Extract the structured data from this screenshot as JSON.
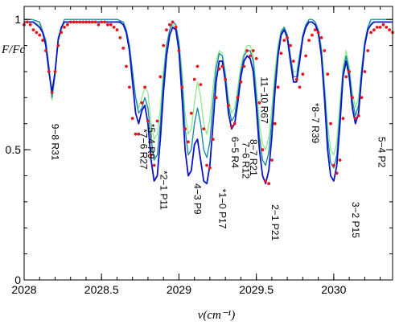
{
  "chart_data": {
    "type": "line",
    "xlabel": "ν(cm⁻¹)",
    "ylabel": "F/Fc",
    "xlim": [
      2028.0,
      2030.38
    ],
    "ylim": [
      0,
      1.05
    ],
    "x_ticks": [
      {
        "v": 2028.0,
        "label": "2028"
      },
      {
        "v": 2028.5,
        "label": "2028.5"
      },
      {
        "v": 2029.0,
        "label": "2029"
      },
      {
        "v": 2029.5,
        "label": "2029.5"
      },
      {
        "v": 2030.0,
        "label": "2030"
      }
    ],
    "y_ticks": [
      {
        "v": 0,
        "label": "0"
      },
      {
        "v": 0.5,
        "label": "0.5"
      },
      {
        "v": 1.0,
        "label": "1"
      }
    ],
    "colors": {
      "observed": "#e8141b",
      "model_blue": "#0a14c8",
      "model_green": "#8ee88e",
      "model_teal": "#1e8c9e",
      "axes": "#000000"
    },
    "series": [
      {
        "role": "observed-points",
        "style": "points",
        "x": [
          2028.0,
          2028.02,
          2028.04,
          2028.06,
          2028.08,
          2028.1,
          2028.12,
          2028.14,
          2028.16,
          2028.18,
          2028.2,
          2028.22,
          2028.24,
          2028.26,
          2028.28,
          2028.3,
          2028.32,
          2028.34,
          2028.36,
          2028.38,
          2028.4,
          2028.42,
          2028.44,
          2028.46,
          2028.48,
          2028.5,
          2028.52,
          2028.54,
          2028.56,
          2028.58,
          2028.6,
          2028.62,
          2028.64,
          2028.66,
          2028.68,
          2028.7,
          2028.72,
          2028.74,
          2028.76,
          2028.78,
          2028.8,
          2028.82,
          2028.84,
          2028.86,
          2028.88,
          2028.9,
          2028.92,
          2028.94,
          2028.96,
          2028.98,
          2029.0,
          2029.02,
          2029.04,
          2029.06,
          2029.08,
          2029.1,
          2029.12,
          2029.14,
          2029.16,
          2029.18,
          2029.2,
          2029.22,
          2029.24,
          2029.26,
          2029.28,
          2029.3,
          2029.32,
          2029.34,
          2029.36,
          2029.38,
          2029.4,
          2029.42,
          2029.44,
          2029.46,
          2029.48,
          2029.5,
          2029.52,
          2029.54,
          2029.56,
          2029.58,
          2029.6,
          2029.62,
          2029.64,
          2029.66,
          2029.68,
          2029.7,
          2029.72,
          2029.74,
          2029.76,
          2029.78,
          2029.8,
          2029.82,
          2029.84,
          2029.86,
          2029.88,
          2029.9,
          2029.92,
          2029.94,
          2029.96,
          2029.98,
          2030.0,
          2030.02,
          2030.04,
          2030.06,
          2030.08,
          2030.1,
          2030.12,
          2030.14,
          2030.16,
          2030.18,
          2030.2,
          2030.22,
          2030.24,
          2030.26,
          2030.28,
          2030.3,
          2030.32,
          2030.34,
          2030.36,
          2030.38
        ],
        "y": [
          0.98,
          0.99,
          0.98,
          0.96,
          0.95,
          0.94,
          0.92,
          0.88,
          0.8,
          0.72,
          0.8,
          0.9,
          0.95,
          0.97,
          0.98,
          0.99,
          0.99,
          0.99,
          0.99,
          0.99,
          0.99,
          0.99,
          0.99,
          0.99,
          0.98,
          0.99,
          0.99,
          0.98,
          0.98,
          0.97,
          0.96,
          0.93,
          0.89,
          0.82,
          0.74,
          0.62,
          0.56,
          0.56,
          0.68,
          0.74,
          0.61,
          0.48,
          0.44,
          0.61,
          0.78,
          0.9,
          0.96,
          0.98,
          0.99,
          0.97,
          0.88,
          0.74,
          0.58,
          0.53,
          0.64,
          0.77,
          0.82,
          0.75,
          0.58,
          0.44,
          0.43,
          0.54,
          0.7,
          0.81,
          0.82,
          0.77,
          0.67,
          0.59,
          0.6,
          0.7,
          0.76,
          0.82,
          0.88,
          0.86,
          0.88,
          0.85,
          0.68,
          0.5,
          0.38,
          0.37,
          0.46,
          0.6,
          0.74,
          0.87,
          0.92,
          0.93,
          0.9,
          0.84,
          0.77,
          0.74,
          0.79,
          0.86,
          0.92,
          0.94,
          0.96,
          0.95,
          0.93,
          0.88,
          0.79,
          0.6,
          0.44,
          0.41,
          0.46,
          0.62,
          0.78,
          0.8,
          0.7,
          0.62,
          0.63,
          0.7,
          0.8,
          0.88,
          0.95,
          0.96,
          0.97,
          0.97,
          0.98,
          0.97,
          0.96,
          0.95
        ]
      },
      {
        "role": "model-blue",
        "style": "line",
        "x": [
          2028.0,
          2028.02,
          2028.04,
          2028.06,
          2028.08,
          2028.1,
          2028.12,
          2028.14,
          2028.16,
          2028.18,
          2028.2,
          2028.22,
          2028.24,
          2028.26,
          2028.28,
          2028.3,
          2028.35,
          2028.4,
          2028.45,
          2028.5,
          2028.55,
          2028.6,
          2028.62,
          2028.64,
          2028.66,
          2028.68,
          2028.7,
          2028.72,
          2028.74,
          2028.76,
          2028.78,
          2028.8,
          2028.82,
          2028.84,
          2028.86,
          2028.88,
          2028.9,
          2028.92,
          2028.94,
          2028.96,
          2028.98,
          2029.0,
          2029.02,
          2029.04,
          2029.06,
          2029.08,
          2029.1,
          2029.12,
          2029.14,
          2029.16,
          2029.18,
          2029.2,
          2029.22,
          2029.24,
          2029.26,
          2029.28,
          2029.3,
          2029.32,
          2029.34,
          2029.36,
          2029.38,
          2029.4,
          2029.42,
          2029.44,
          2029.46,
          2029.48,
          2029.5,
          2029.52,
          2029.54,
          2029.56,
          2029.58,
          2029.6,
          2029.62,
          2029.64,
          2029.66,
          2029.68,
          2029.7,
          2029.72,
          2029.74,
          2029.76,
          2029.78,
          2029.8,
          2029.82,
          2029.84,
          2029.86,
          2029.88,
          2029.9,
          2029.92,
          2029.94,
          2029.96,
          2029.98,
          2030.0,
          2030.02,
          2030.04,
          2030.06,
          2030.08,
          2030.1,
          2030.12,
          2030.14,
          2030.16,
          2030.18,
          2030.2,
          2030.22,
          2030.24,
          2030.26,
          2030.28,
          2030.3,
          2030.32,
          2030.34,
          2030.36,
          2030.38
        ],
        "y": [
          0.99,
          0.99,
          0.99,
          0.99,
          0.98,
          0.97,
          0.95,
          0.9,
          0.8,
          0.72,
          0.8,
          0.92,
          0.97,
          0.99,
          0.99,
          0.99,
          0.99,
          0.99,
          0.99,
          0.99,
          0.99,
          0.99,
          0.99,
          0.98,
          0.95,
          0.88,
          0.76,
          0.64,
          0.6,
          0.65,
          0.67,
          0.6,
          0.46,
          0.38,
          0.4,
          0.54,
          0.72,
          0.86,
          0.94,
          0.97,
          0.96,
          0.88,
          0.7,
          0.5,
          0.4,
          0.42,
          0.52,
          0.54,
          0.46,
          0.38,
          0.37,
          0.44,
          0.6,
          0.76,
          0.84,
          0.84,
          0.76,
          0.64,
          0.58,
          0.6,
          0.68,
          0.78,
          0.84,
          0.86,
          0.85,
          0.8,
          0.66,
          0.5,
          0.4,
          0.37,
          0.42,
          0.55,
          0.72,
          0.86,
          0.94,
          0.96,
          0.93,
          0.84,
          0.76,
          0.76,
          0.84,
          0.93,
          0.97,
          0.99,
          0.99,
          0.98,
          0.95,
          0.86,
          0.7,
          0.5,
          0.4,
          0.38,
          0.44,
          0.6,
          0.78,
          0.84,
          0.78,
          0.66,
          0.6,
          0.64,
          0.78,
          0.9,
          0.96,
          0.98,
          0.99,
          0.99,
          0.99,
          0.99,
          0.99,
          0.99,
          0.99
        ]
      },
      {
        "role": "model-green",
        "style": "line",
        "x": [
          2028.0,
          2028.05,
          2028.1,
          2028.14,
          2028.16,
          2028.18,
          2028.2,
          2028.22,
          2028.26,
          2028.3,
          2028.4,
          2028.5,
          2028.6,
          2028.64,
          2028.66,
          2028.68,
          2028.7,
          2028.72,
          2028.74,
          2028.76,
          2028.78,
          2028.8,
          2028.82,
          2028.84,
          2028.86,
          2028.88,
          2028.9,
          2028.92,
          2028.94,
          2028.96,
          2028.98,
          2029.0,
          2029.02,
          2029.04,
          2029.06,
          2029.08,
          2029.1,
          2029.12,
          2029.14,
          2029.16,
          2029.18,
          2029.2,
          2029.22,
          2029.24,
          2029.26,
          2029.28,
          2029.3,
          2029.32,
          2029.34,
          2029.36,
          2029.38,
          2029.4,
          2029.42,
          2029.44,
          2029.46,
          2029.48,
          2029.5,
          2029.52,
          2029.54,
          2029.56,
          2029.58,
          2029.6,
          2029.62,
          2029.64,
          2029.66,
          2029.68,
          2029.7,
          2029.72,
          2029.74,
          2029.76,
          2029.78,
          2029.8,
          2029.82,
          2029.84,
          2029.86,
          2029.88,
          2029.9,
          2029.92,
          2029.94,
          2029.96,
          2029.98,
          2030.0,
          2030.02,
          2030.04,
          2030.06,
          2030.08,
          2030.1,
          2030.12,
          2030.14,
          2030.16,
          2030.18,
          2030.2,
          2030.22,
          2030.24,
          2030.26,
          2030.28,
          2030.3,
          2030.32,
          2030.34,
          2030.36,
          2030.38
        ],
        "y": [
          0.99,
          0.99,
          0.98,
          0.92,
          0.82,
          0.69,
          0.78,
          0.92,
          0.99,
          0.99,
          0.99,
          0.99,
          0.99,
          0.98,
          0.95,
          0.9,
          0.8,
          0.7,
          0.66,
          0.7,
          0.74,
          0.72,
          0.6,
          0.54,
          0.56,
          0.66,
          0.8,
          0.9,
          0.96,
          0.98,
          0.97,
          0.92,
          0.8,
          0.64,
          0.56,
          0.58,
          0.68,
          0.76,
          0.7,
          0.6,
          0.56,
          0.62,
          0.74,
          0.84,
          0.88,
          0.87,
          0.8,
          0.7,
          0.64,
          0.66,
          0.74,
          0.82,
          0.87,
          0.9,
          0.9,
          0.86,
          0.74,
          0.6,
          0.52,
          0.5,
          0.55,
          0.66,
          0.8,
          0.9,
          0.96,
          0.97,
          0.94,
          0.86,
          0.8,
          0.8,
          0.87,
          0.94,
          0.98,
          0.99,
          0.99,
          0.98,
          0.96,
          0.9,
          0.76,
          0.6,
          0.5,
          0.48,
          0.53,
          0.68,
          0.82,
          0.88,
          0.82,
          0.72,
          0.66,
          0.7,
          0.82,
          0.92,
          0.97,
          0.99,
          0.99,
          0.99,
          0.99,
          0.99,
          0.99,
          0.99,
          0.99
        ]
      },
      {
        "role": "model-teal",
        "style": "line",
        "x": [
          2028.0,
          2028.05,
          2028.1,
          2028.14,
          2028.16,
          2028.18,
          2028.2,
          2028.22,
          2028.26,
          2028.3,
          2028.4,
          2028.5,
          2028.6,
          2028.64,
          2028.66,
          2028.68,
          2028.7,
          2028.72,
          2028.74,
          2028.76,
          2028.78,
          2028.8,
          2028.82,
          2028.84,
          2028.86,
          2028.88,
          2028.9,
          2028.92,
          2028.94,
          2028.96,
          2028.98,
          2029.0,
          2029.02,
          2029.04,
          2029.06,
          2029.08,
          2029.1,
          2029.12,
          2029.14,
          2029.16,
          2029.18,
          2029.2,
          2029.22,
          2029.24,
          2029.26,
          2029.28,
          2029.3,
          2029.32,
          2029.34,
          2029.36,
          2029.38,
          2029.4,
          2029.42,
          2029.44,
          2029.46,
          2029.48,
          2029.5,
          2029.52,
          2029.54,
          2029.56,
          2029.58,
          2029.6,
          2029.62,
          2029.64,
          2029.66,
          2029.68,
          2029.7,
          2029.72,
          2029.74,
          2029.76,
          2029.78,
          2029.8,
          2029.82,
          2029.84,
          2029.86,
          2029.88,
          2029.9,
          2029.92,
          2029.94,
          2029.96,
          2029.98,
          2030.0,
          2030.02,
          2030.04,
          2030.06,
          2030.08,
          2030.1,
          2030.12,
          2030.14,
          2030.16,
          2030.18,
          2030.2,
          2030.22,
          2030.24,
          2030.26,
          2030.28,
          2030.3,
          2030.32,
          2030.34,
          2030.36,
          2030.38
        ],
        "y": [
          1.0,
          1.0,
          0.99,
          0.92,
          0.82,
          0.7,
          0.79,
          0.93,
          1.0,
          1.0,
          1.0,
          1.0,
          1.0,
          0.99,
          0.96,
          0.9,
          0.8,
          0.7,
          0.64,
          0.66,
          0.7,
          0.66,
          0.54,
          0.46,
          0.48,
          0.6,
          0.77,
          0.9,
          0.96,
          0.99,
          0.98,
          0.91,
          0.76,
          0.58,
          0.48,
          0.5,
          0.6,
          0.66,
          0.6,
          0.5,
          0.47,
          0.53,
          0.68,
          0.81,
          0.87,
          0.86,
          0.78,
          0.67,
          0.61,
          0.63,
          0.71,
          0.8,
          0.86,
          0.88,
          0.88,
          0.84,
          0.7,
          0.55,
          0.46,
          0.44,
          0.49,
          0.61,
          0.76,
          0.88,
          0.95,
          0.97,
          0.94,
          0.86,
          0.78,
          0.78,
          0.86,
          0.94,
          0.98,
          1.0,
          1.0,
          0.99,
          0.96,
          0.88,
          0.73,
          0.55,
          0.45,
          0.43,
          0.48,
          0.64,
          0.8,
          0.86,
          0.8,
          0.69,
          0.63,
          0.67,
          0.8,
          0.91,
          0.97,
          1.0,
          1.0,
          1.0,
          1.0,
          1.0,
          1.0,
          1.0,
          1.0
        ]
      }
    ],
    "annotations": [
      {
        "text": "9−8 R31",
        "x": 2028.18,
        "y": 0.6
      },
      {
        "text": "*5−4 R9",
        "x": 2028.8,
        "y": 0.6
      },
      {
        "text": "*7−6 R27",
        "x": 2028.75,
        "y": 0.58
      },
      {
        "text": "*2−1 P11",
        "x": 2028.88,
        "y": 0.42
      },
      {
        "text": "4−3 P9",
        "x": 2029.1,
        "y": 0.37
      },
      {
        "text": "*1−0 P17",
        "x": 2029.26,
        "y": 0.35
      },
      {
        "text": "6−5 R4",
        "x": 2029.34,
        "y": 0.55
      },
      {
        "text": "8−7 R21",
        "x": 2029.46,
        "y": 0.54
      },
      {
        "text": "7−6 R12",
        "x": 2029.41,
        "y": 0.53
      },
      {
        "text": "11−10 R67",
        "x": 2029.53,
        "y": 0.78
      },
      {
        "text": "2−1 P21",
        "x": 2029.6,
        "y": 0.29
      },
      {
        "text": "*8−7 R39",
        "x": 2029.86,
        "y": 0.68
      },
      {
        "text": "3−2 P15",
        "x": 2030.12,
        "y": 0.3
      },
      {
        "text": "5−4 P2",
        "x": 2030.29,
        "y": 0.55
      }
    ]
  }
}
